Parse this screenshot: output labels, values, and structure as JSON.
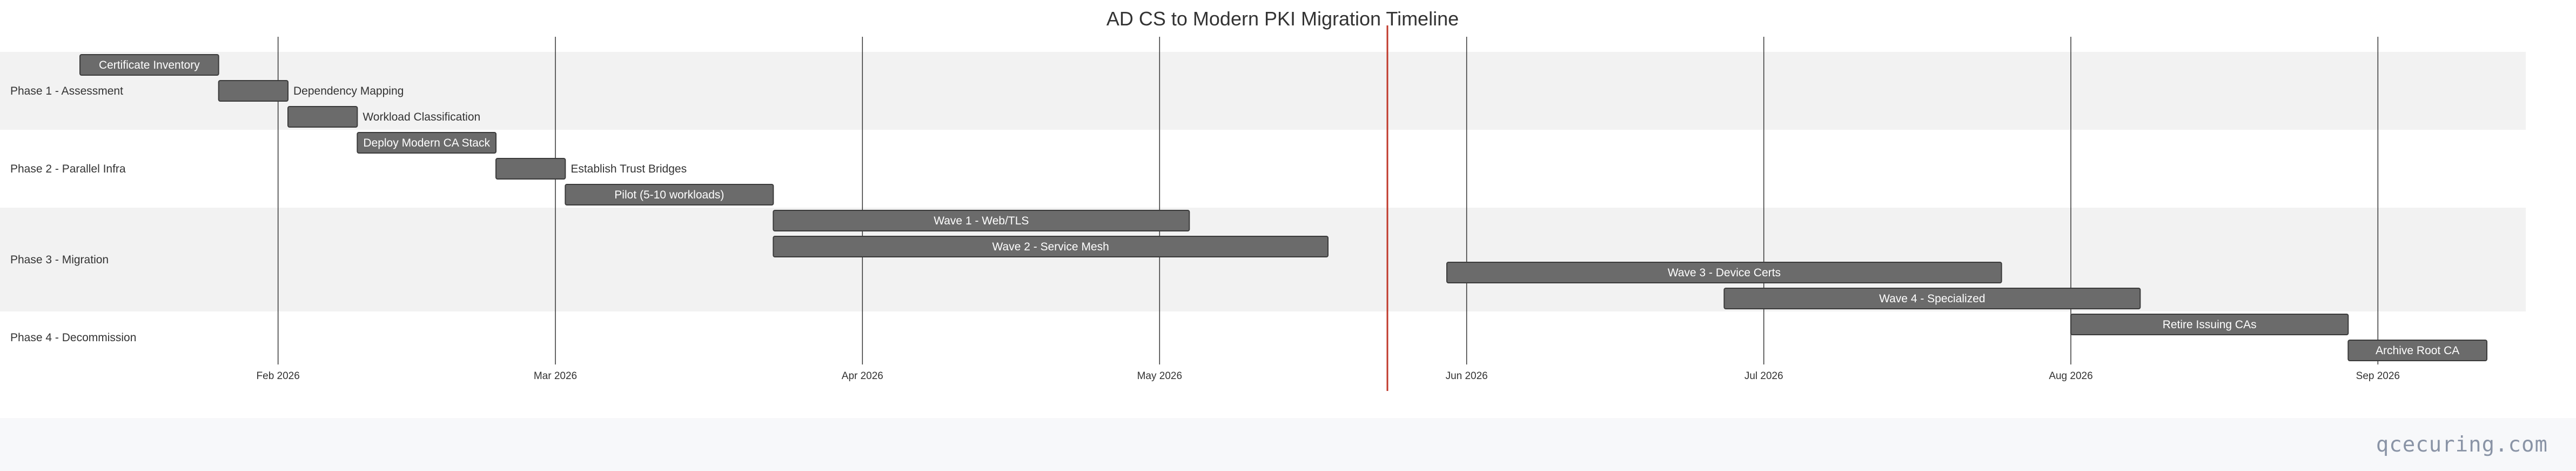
{
  "chart_data": {
    "type": "gantt",
    "title": "AD CS to Modern PKI Migration Timeline",
    "today": "2026-05-24",
    "x_ticks": [
      {
        "date": "2026-02-01",
        "label": "Feb 2026"
      },
      {
        "date": "2026-03-01",
        "label": "Mar 2026"
      },
      {
        "date": "2026-04-01",
        "label": "Apr 2026"
      },
      {
        "date": "2026-05-01",
        "label": "May 2026"
      },
      {
        "date": "2026-06-01",
        "label": "Jun 2026"
      },
      {
        "date": "2026-07-01",
        "label": "Jul 2026"
      },
      {
        "date": "2026-08-01",
        "label": "Aug 2026"
      },
      {
        "date": "2026-09-01",
        "label": "Sep 2026"
      }
    ],
    "x_range": [
      "2026-01-12",
      "2026-09-12"
    ],
    "sections": [
      {
        "name": "Phase 1 - Assessment",
        "tasks": [
          {
            "name": "Certificate Inventory",
            "start": "2026-01-12",
            "end": "2026-01-26"
          },
          {
            "name": "Dependency Mapping",
            "start": "2026-01-26",
            "end": "2026-02-02"
          },
          {
            "name": "Workload Classification",
            "start": "2026-02-02",
            "end": "2026-02-09"
          }
        ]
      },
      {
        "name": "Phase 2 - Parallel Infra",
        "tasks": [
          {
            "name": "Deploy Modern CA Stack",
            "start": "2026-02-09",
            "end": "2026-02-23"
          },
          {
            "name": "Establish Trust Bridges",
            "start": "2026-02-23",
            "end": "2026-03-02"
          },
          {
            "name": "Pilot (5-10 workloads)",
            "start": "2026-03-02",
            "end": "2026-03-23"
          }
        ]
      },
      {
        "name": "Phase 3 - Migration",
        "tasks": [
          {
            "name": "Wave 1 - Web/TLS",
            "start": "2026-03-23",
            "end": "2026-05-04"
          },
          {
            "name": "Wave 2 - Service Mesh",
            "start": "2026-03-23",
            "end": "2026-05-18"
          },
          {
            "name": "Wave 3 - Device Certs",
            "start": "2026-05-30",
            "end": "2026-07-25"
          },
          {
            "name": "Wave 4 - Specialized",
            "start": "2026-06-27",
            "end": "2026-08-08"
          }
        ]
      },
      {
        "name": "Phase 4 - Decommission",
        "tasks": [
          {
            "name": "Retire Issuing CAs",
            "start": "2026-08-01",
            "end": "2026-08-29"
          },
          {
            "name": "Archive Root CA",
            "start": "2026-08-29",
            "end": "2026-09-12"
          }
        ]
      }
    ]
  },
  "footer": {
    "brand": "qcecuring.com"
  },
  "colors": {
    "bar_fill": "#6b6b6b",
    "bar_stroke": "#3a3a3a",
    "band_shade": "#f2f2f2",
    "grid": "#333333",
    "today_line": "#c0392b"
  }
}
